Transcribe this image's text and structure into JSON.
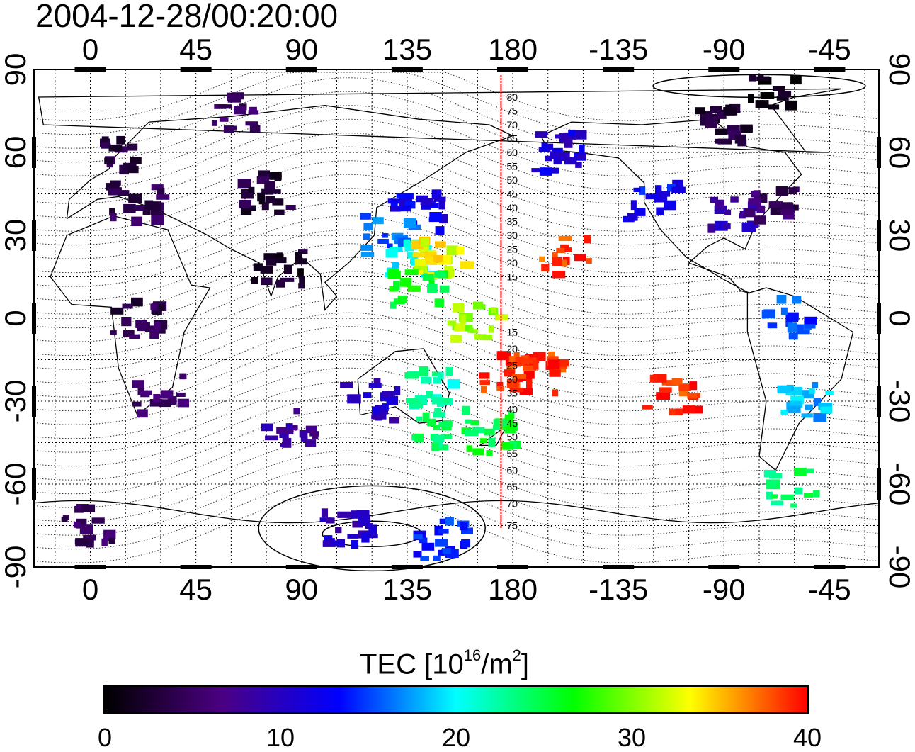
{
  "title": "2004-12-28/00:20:00",
  "map": {
    "longitude_labels": [
      "0",
      "45",
      "90",
      "135",
      "180",
      "-135",
      "-90",
      "-45"
    ],
    "longitude_values": [
      0,
      45,
      90,
      135,
      180,
      225,
      270,
      315
    ],
    "latitude_labels": [
      "90",
      "60",
      "30",
      "0",
      "-30",
      "-60",
      "-90"
    ],
    "latitude_values": [
      90,
      60,
      30,
      0,
      -30,
      -60,
      -90
    ],
    "lon_range": [
      -24,
      336
    ],
    "lat_range": [
      -90,
      90
    ],
    "grid": "dotted 15-degree graticule",
    "meridian_line": {
      "lon": 175,
      "color": "#ff0000",
      "north_labels": [
        "80",
        "75",
        "70",
        "65",
        "60",
        "55",
        "50",
        "45",
        "40",
        "35",
        "30",
        "25",
        "20",
        "15"
      ],
      "north_lats": [
        80,
        75,
        70,
        65,
        60,
        55,
        50,
        45,
        40,
        35,
        30,
        25,
        20,
        15
      ],
      "south_labels": [
        "15",
        "20",
        "25",
        "30",
        "35",
        "40",
        "45",
        "50",
        "55",
        "60",
        "65",
        "70",
        "75"
      ],
      "south_lats": [
        -5,
        -11,
        -17,
        -22,
        -27,
        -33,
        -38,
        -43,
        -49,
        -55,
        -61,
        -67,
        -75
      ]
    }
  },
  "chart_data": {
    "type": "heatmap",
    "title": "2004-12-28/00:20:00",
    "value_label": "TEC [10^16/m^2]",
    "color_range": [
      0,
      40
    ],
    "clusters": [
      {
        "lon": 10,
        "lat": 60,
        "tec": 3
      },
      {
        "lon": 20,
        "lat": 42,
        "tec": 4
      },
      {
        "lon": 75,
        "lat": 45,
        "tec": 3
      },
      {
        "lon": 140,
        "lat": 38,
        "tec": 12
      },
      {
        "lon": 128,
        "lat": 30,
        "tec": 16
      },
      {
        "lon": 135,
        "lat": 22,
        "tec": 20
      },
      {
        "lon": 150,
        "lat": 22,
        "tec": 33
      },
      {
        "lon": 140,
        "lat": 10,
        "tec": 26
      },
      {
        "lon": 165,
        "lat": -2,
        "tec": 31
      },
      {
        "lon": 178,
        "lat": -20,
        "tec": 39
      },
      {
        "lon": 193,
        "lat": -20,
        "tec": 39
      },
      {
        "lon": 202,
        "lat": 22,
        "tec": 38
      },
      {
        "lon": 248,
        "lat": -27,
        "tec": 39
      },
      {
        "lon": 200,
        "lat": 60,
        "tec": 11
      },
      {
        "lon": 240,
        "lat": 42,
        "tec": 13
      },
      {
        "lon": 275,
        "lat": 38,
        "tec": 9
      },
      {
        "lon": 290,
        "lat": 42,
        "tec": 5
      },
      {
        "lon": 270,
        "lat": 70,
        "tec": 3
      },
      {
        "lon": 290,
        "lat": 82,
        "tec": 1
      },
      {
        "lon": 300,
        "lat": 0,
        "tec": 15
      },
      {
        "lon": 305,
        "lat": -30,
        "tec": 18
      },
      {
        "lon": 300,
        "lat": -62,
        "tec": 24
      },
      {
        "lon": 145,
        "lat": -25,
        "tec": 22
      },
      {
        "lon": 150,
        "lat": -40,
        "tec": 24
      },
      {
        "lon": 170,
        "lat": -42,
        "tec": 25
      },
      {
        "lon": 120,
        "lat": -30,
        "tec": 10
      },
      {
        "lon": 85,
        "lat": -40,
        "tec": 8
      },
      {
        "lon": 30,
        "lat": -28,
        "tec": 6
      },
      {
        "lon": 20,
        "lat": 0,
        "tec": 4
      },
      {
        "lon": 80,
        "lat": 18,
        "tec": 2
      },
      {
        "lon": 110,
        "lat": -75,
        "tec": 10
      },
      {
        "lon": 150,
        "lat": -80,
        "tec": 14
      },
      {
        "lon": 0,
        "lat": -75,
        "tec": 5
      },
      {
        "lon": 60,
        "lat": 75,
        "tec": 5
      }
    ],
    "contours": "solid and dotted magnetic latitude contour lines"
  },
  "colorbar": {
    "title_main": "TEC  [10",
    "title_exp": "16",
    "title_mid": "/m",
    "title_exp2": "2",
    "title_end": "]",
    "tick_labels": [
      "0",
      "10",
      "20",
      "30",
      "40"
    ],
    "tick_values": [
      0,
      10,
      20,
      30,
      40
    ],
    "colors": [
      "#000000",
      "#4b0082",
      "#0000ff",
      "#00ffff",
      "#00ff00",
      "#ffff00",
      "#ff0000"
    ]
  }
}
